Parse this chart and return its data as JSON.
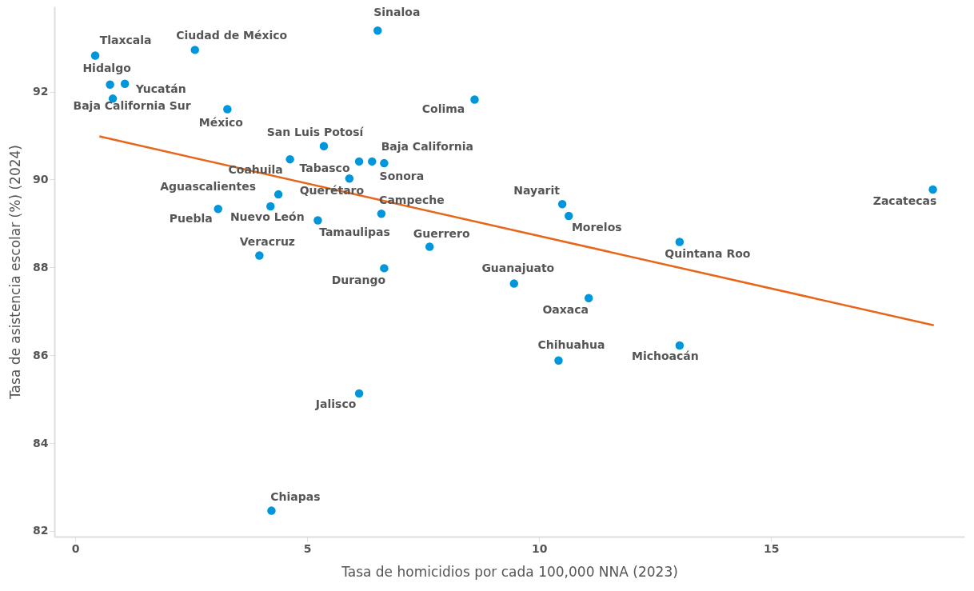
{
  "chart_data": {
    "type": "scatter",
    "xlabel": "Tasa de homicidios por cada 100,000 NNA (2023)",
    "ylabel": "Tasa de asistencia escolar (%) (2024)",
    "xlim": [
      -0.45,
      19.17
    ],
    "xticks": [
      0,
      5,
      10,
      15
    ],
    "ylim": [
      81.87,
      93.94
    ],
    "yticks": [
      82,
      84,
      86,
      88,
      90,
      92
    ],
    "grid": false,
    "series": [
      {
        "type": "scatter",
        "marker": "circle",
        "color": "#0096db",
        "x": [
          0.43,
          0.75,
          1.07,
          0.81,
          2.58,
          3.28,
          6.52,
          8.61,
          5.36,
          4.63,
          6.12,
          6.4,
          6.66,
          5.91,
          4.38,
          3.08,
          4.21,
          5.23,
          6.6,
          3.97,
          7.64,
          6.66,
          10.5,
          10.64,
          18.49,
          13.03,
          9.46,
          11.07,
          10.42,
          13.03,
          6.12,
          4.23
        ],
        "values": [
          92.82,
          92.16,
          92.18,
          91.84,
          92.95,
          91.6,
          93.39,
          91.82,
          90.76,
          90.46,
          90.41,
          90.41,
          90.37,
          90.02,
          89.66,
          89.33,
          89.39,
          89.07,
          89.22,
          88.27,
          88.47,
          87.98,
          89.44,
          89.17,
          89.77,
          88.58,
          87.63,
          87.3,
          85.88,
          86.22,
          85.13,
          82.46
        ]
      },
      {
        "type": "line",
        "color": "#e8661a",
        "x": [
          0.52,
          18.51
        ],
        "values": [
          90.98,
          86.68
        ]
      }
    ],
    "annotations": [
      {
        "text": "Tlaxcala",
        "x": 0.43,
        "y": 92.82
      },
      {
        "text": "Hidalgo",
        "x": 0.75,
        "y": 92.16
      },
      {
        "text": "Yucatán",
        "x": 1.07,
        "y": 92.18
      },
      {
        "text": "Baja California Sur",
        "x": 0.81,
        "y": 91.84
      },
      {
        "text": "Ciudad de México",
        "x": 2.58,
        "y": 92.95
      },
      {
        "text": "México",
        "x": 3.28,
        "y": 91.6
      },
      {
        "text": "Sinaloa",
        "x": 6.52,
        "y": 93.39
      },
      {
        "text": "Colima",
        "x": 8.61,
        "y": 91.82
      },
      {
        "text": "San Luis Potosí",
        "x": 5.36,
        "y": 90.76
      },
      {
        "text": "Coahuila",
        "x": 4.63,
        "y": 90.46
      },
      {
        "text": "Tabasco",
        "x": 6.12,
        "y": 90.41
      },
      {
        "text": "Baja California",
        "x": 6.4,
        "y": 90.41
      },
      {
        "text": "Sonora",
        "x": 6.66,
        "y": 90.37
      },
      {
        "text": "Querétaro",
        "x": 5.91,
        "y": 90.02
      },
      {
        "text": "Aguascalientes",
        "x": 4.38,
        "y": 89.66
      },
      {
        "text": "Puebla",
        "x": 3.08,
        "y": 89.33
      },
      {
        "text": "Nuevo León",
        "x": 4.21,
        "y": 89.39
      },
      {
        "text": "Tamaulipas",
        "x": 5.23,
        "y": 89.07
      },
      {
        "text": "Campeche",
        "x": 6.6,
        "y": 89.22
      },
      {
        "text": "Veracruz",
        "x": 3.97,
        "y": 88.27
      },
      {
        "text": "Guerrero",
        "x": 7.64,
        "y": 88.47
      },
      {
        "text": "Durango",
        "x": 6.66,
        "y": 87.98
      },
      {
        "text": "Nayarit",
        "x": 10.5,
        "y": 89.44
      },
      {
        "text": "Morelos",
        "x": 10.64,
        "y": 89.17
      },
      {
        "text": "Zacatecas",
        "x": 18.49,
        "y": 89.77
      },
      {
        "text": "Quintana Roo",
        "x": 13.03,
        "y": 88.58
      },
      {
        "text": "Guanajuato",
        "x": 9.46,
        "y": 87.63
      },
      {
        "text": "Oaxaca",
        "x": 11.07,
        "y": 87.3
      },
      {
        "text": "Chihuahua",
        "x": 10.42,
        "y": 85.88
      },
      {
        "text": "Michoacán",
        "x": 13.03,
        "y": 86.22
      },
      {
        "text": "Jalisco",
        "x": 6.12,
        "y": 85.13
      },
      {
        "text": "Chiapas",
        "x": 4.23,
        "y": 82.46
      }
    ]
  }
}
